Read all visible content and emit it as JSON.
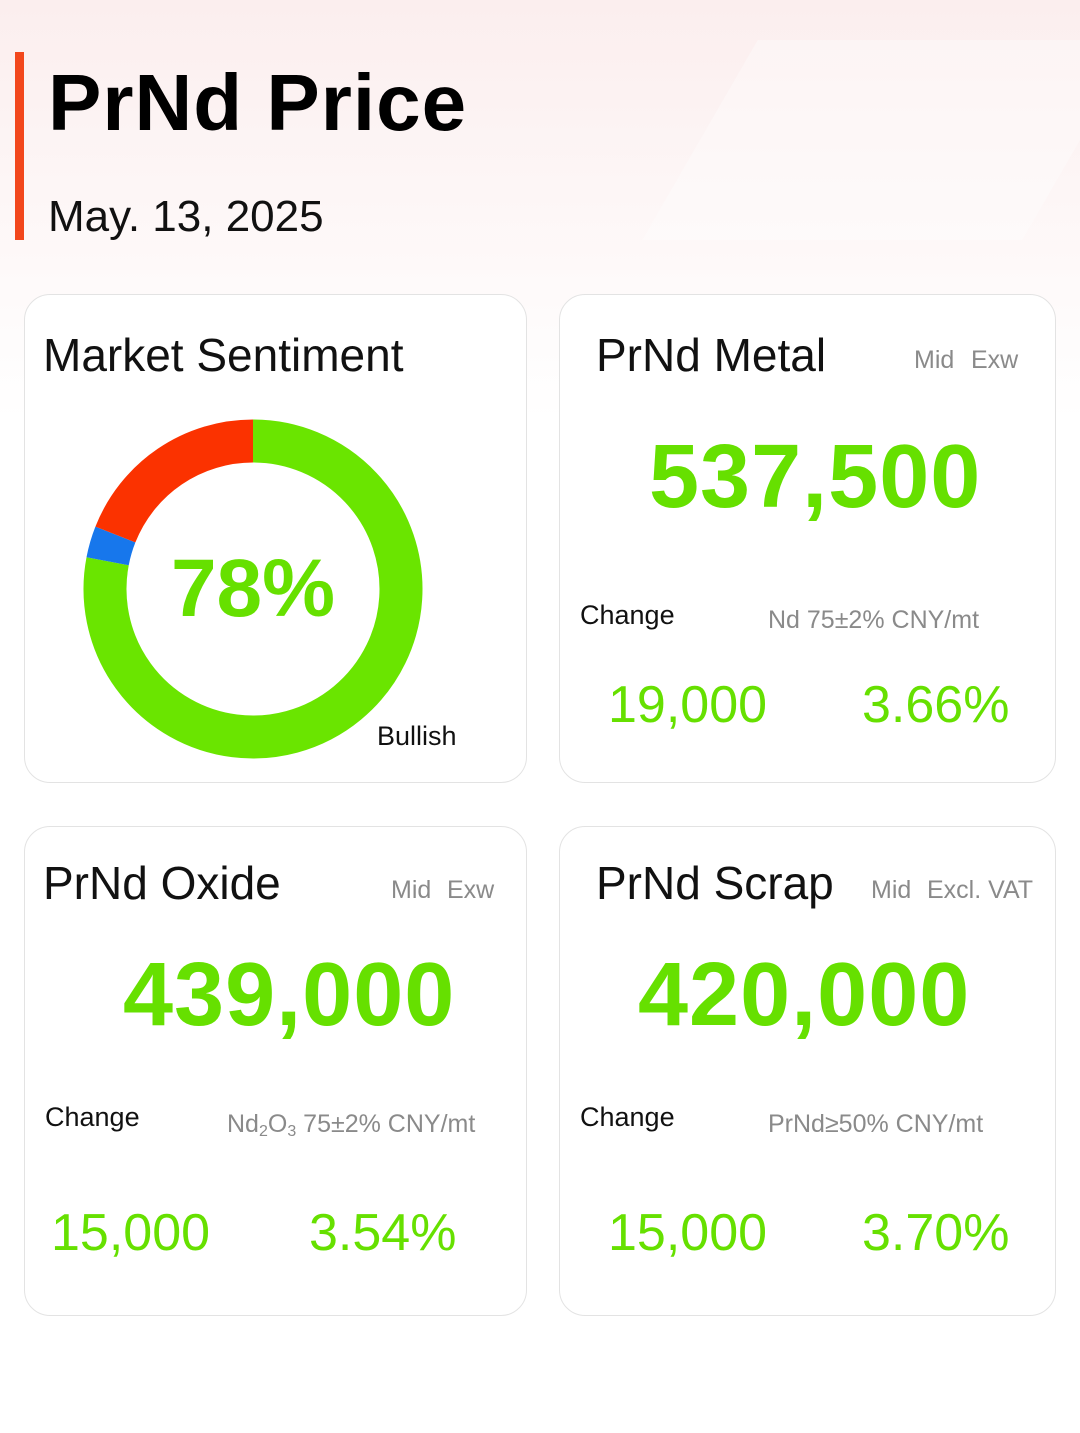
{
  "header": {
    "title": "PrNd Price",
    "date": "May. 13, 2025"
  },
  "colors": {
    "accent": "#f2471c",
    "positive": "#66e000",
    "bullish": "#6ae500",
    "bearish": "#fb3200",
    "neutral": "#1777ec"
  },
  "sentiment": {
    "title": "Market Sentiment",
    "center_label": "78%",
    "legend_label": "Bullish"
  },
  "chart_data": {
    "type": "pie",
    "title": "Market Sentiment",
    "slices": [
      {
        "label": "Bullish",
        "value": 78,
        "color": "#6ae500"
      },
      {
        "label": "",
        "value": 3,
        "color": "#1777ec"
      },
      {
        "label": "",
        "value": 19,
        "color": "#fb3200"
      }
    ]
  },
  "cards": {
    "metal": {
      "title": "PrNd Metal",
      "tag_mid": "Mid",
      "tag_basis": "Exw",
      "price": "537,500",
      "change_label": "Change",
      "spec": "Nd 75±2% CNY/mt",
      "change_abs": "19,000",
      "change_pct": "3.66%"
    },
    "oxide": {
      "title": "PrNd Oxide",
      "tag_mid": "Mid",
      "tag_basis": "Exw",
      "price": "439,000",
      "change_label": "Change",
      "spec_formula": "Nd",
      "spec_sub1": "2",
      "spec_mid": "O",
      "spec_sub2": "3",
      "spec_rest": " 75±2% CNY/mt",
      "change_abs": "15,000",
      "change_pct": "3.54%"
    },
    "scrap": {
      "title": "PrNd Scrap",
      "tag_mid": "Mid",
      "tag_basis": "Excl. VAT",
      "price": "420,000",
      "change_label": "Change",
      "spec": "PrNd≥50% CNY/mt",
      "change_abs": "15,000",
      "change_pct": "3.70%"
    }
  }
}
